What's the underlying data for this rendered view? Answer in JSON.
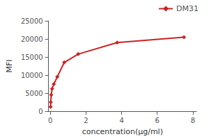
{
  "chart_data": {
    "type": "line",
    "xlabel": "concentration(μg/ml)",
    "ylabel": "MFI",
    "x": [
      0.012,
      0.024,
      0.049,
      0.098,
      0.195,
      0.39,
      0.78,
      1.563,
      3.75,
      7.5
    ],
    "series": [
      {
        "name": "DM31",
        "color": "#cc2222",
        "marker": "diamond",
        "values": [
          1200,
          2500,
          4500,
          6200,
          7500,
          9500,
          13500,
          15800,
          19000,
          20500
        ]
      }
    ],
    "xlim": [
      -0.1,
      8.2
    ],
    "ylim": [
      0,
      25000
    ],
    "xticks": [
      0,
      2,
      4,
      6,
      8
    ],
    "yticks": [
      0,
      5000,
      10000,
      15000,
      20000,
      25000
    ],
    "grid": false,
    "legend": "upper right"
  }
}
